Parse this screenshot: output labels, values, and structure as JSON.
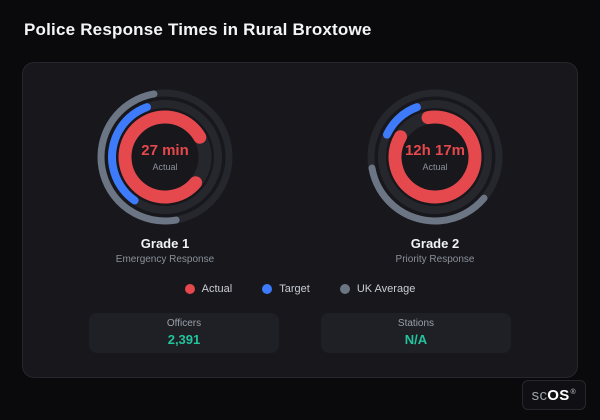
{
  "header": {
    "title": "Police Response Times in Rural Broxtowe"
  },
  "chart_data": {
    "type": "gauge",
    "title": "Police Response Times in Rural Broxtowe",
    "legend_position": "bottom-center",
    "track_color": "#26262d",
    "series": [
      {
        "name": "Actual",
        "color": "#e5484d"
      },
      {
        "name": "Target",
        "color": "#3d7bfa"
      },
      {
        "name": "UK Average",
        "color": "#6b7584"
      }
    ],
    "gauges": [
      {
        "label": "Grade 1",
        "sublabel": "Emergency Response",
        "center_value": "27 min",
        "center_caption": "Actual",
        "rings": [
          {
            "series": "UK Average",
            "color": "#6b7584",
            "radius": 64,
            "width": 7,
            "start_deg": 170,
            "sweep_deg": 180
          },
          {
            "series": "Target",
            "color": "#3d7bfa",
            "radius": 53,
            "width": 8,
            "start_deg": 215,
            "sweep_deg": 125
          },
          {
            "series": "Actual",
            "color": "#e5484d",
            "radius": 40,
            "width": 13,
            "start_deg": 130,
            "sweep_deg": 290
          }
        ]
      },
      {
        "label": "Grade 2",
        "sublabel": "Priority Response",
        "center_value": "12h 17m",
        "center_caption": "Actual",
        "rings": [
          {
            "series": "UK Average",
            "color": "#6b7584",
            "radius": 64,
            "width": 7,
            "start_deg": 130,
            "sweep_deg": 130
          },
          {
            "series": "Target",
            "color": "#3d7bfa",
            "radius": 53,
            "width": 8,
            "start_deg": 295,
            "sweep_deg": 45
          },
          {
            "series": "Actual",
            "color": "#e5484d",
            "radius": 40,
            "width": 13,
            "start_deg": 350,
            "sweep_deg": 310
          }
        ]
      }
    ]
  },
  "stats": [
    {
      "label": "Officers",
      "value": "2,391"
    },
    {
      "label": "Stations",
      "value": "N/A"
    }
  ],
  "stat_value_color": "#23c39c",
  "footer": {
    "brand_prefix": "sc",
    "brand_suffix": "OS",
    "trademark": "®"
  }
}
